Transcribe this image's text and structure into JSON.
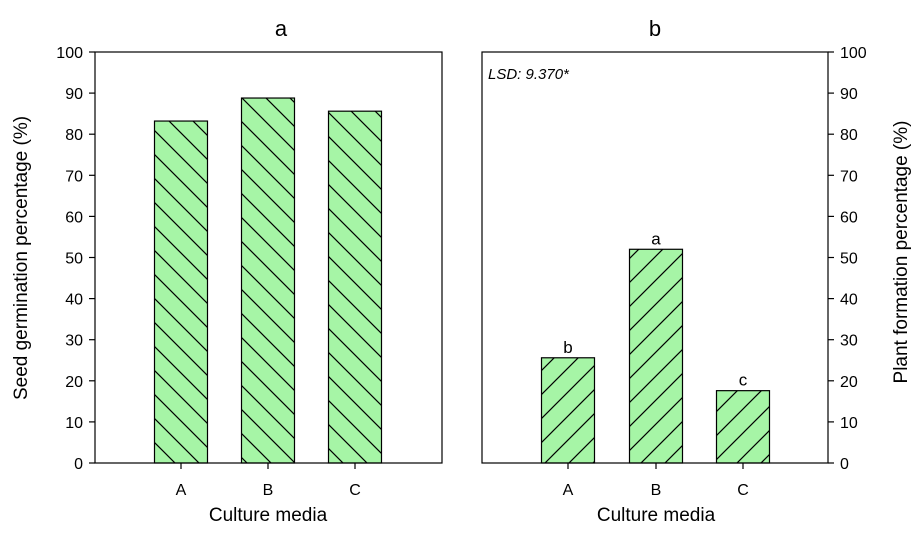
{
  "colors": {
    "bar_fill": "#a6f5a6",
    "hatch": "#000000",
    "axis": "#000000"
  },
  "chart_data": [
    {
      "type": "bar",
      "title": "a",
      "xlabel": "Culture media",
      "ylabel": "Seed germination percentage (%)",
      "ylim": [
        0,
        100
      ],
      "yticks": [
        0,
        10,
        20,
        30,
        40,
        50,
        60,
        70,
        80,
        90,
        100
      ],
      "y_axis_side": "left",
      "categories": [
        "A",
        "B",
        "C"
      ],
      "values": [
        83.2,
        88.8,
        85.6
      ],
      "hatch": "backslash",
      "grid": false
    },
    {
      "type": "bar",
      "title": "b",
      "xlabel": "Culture media",
      "ylabel": "Plant formation percentage (%)",
      "ylim": [
        0,
        100
      ],
      "yticks": [
        0,
        10,
        20,
        30,
        40,
        50,
        60,
        70,
        80,
        90,
        100
      ],
      "y_axis_side": "right",
      "categories": [
        "A",
        "B",
        "C"
      ],
      "values": [
        25.6,
        52.0,
        17.6
      ],
      "letters": [
        "b",
        "a",
        "c"
      ],
      "annotation": "LSD: 9.370*",
      "hatch": "slash",
      "grid": false
    }
  ]
}
